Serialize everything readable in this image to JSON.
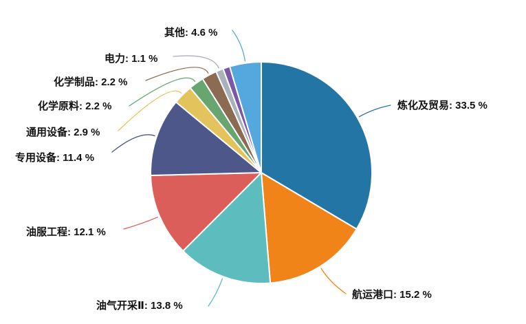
{
  "chart_data": {
    "type": "pie",
    "title": "",
    "unit": "%",
    "label_format": "{name}: {value} %",
    "background": "#FFFFFF",
    "text_color": "#121212",
    "start_angle_deg": 0,
    "direction": "clockwise",
    "legend": "none",
    "slices": [
      {
        "name": "炼化及贸易",
        "value": 33.5,
        "color": "#2375A6",
        "labeled": true
      },
      {
        "name": "航运港口",
        "value": 15.2,
        "color": "#F08418",
        "labeled": true
      },
      {
        "name": "油气开采Ⅱ",
        "value": 13.8,
        "color": "#5CBCBE",
        "labeled": true
      },
      {
        "name": "油服工程",
        "value": 12.1,
        "color": "#DC5E5B",
        "labeled": true
      },
      {
        "name": "专用设备",
        "value": 11.4,
        "color": "#4D5789",
        "labeled": true
      },
      {
        "name": "通用设备",
        "value": 2.9,
        "color": "#E3C35B",
        "labeled": true
      },
      {
        "name": "化学原料",
        "value": 2.2,
        "color": "#67A571",
        "labeled": true
      },
      {
        "name": "化学制品",
        "value": 2.2,
        "color": "#8B6C52",
        "labeled": true
      },
      {
        "name": "电力",
        "value": 1.1,
        "color": "#AAB1BB",
        "labeled": true
      },
      {
        "name": "",
        "value": 1.0,
        "color": "#7B57A8",
        "labeled": false
      },
      {
        "name": "其他",
        "value": 4.6,
        "color": "#54A8DD",
        "labeled": true
      }
    ]
  }
}
